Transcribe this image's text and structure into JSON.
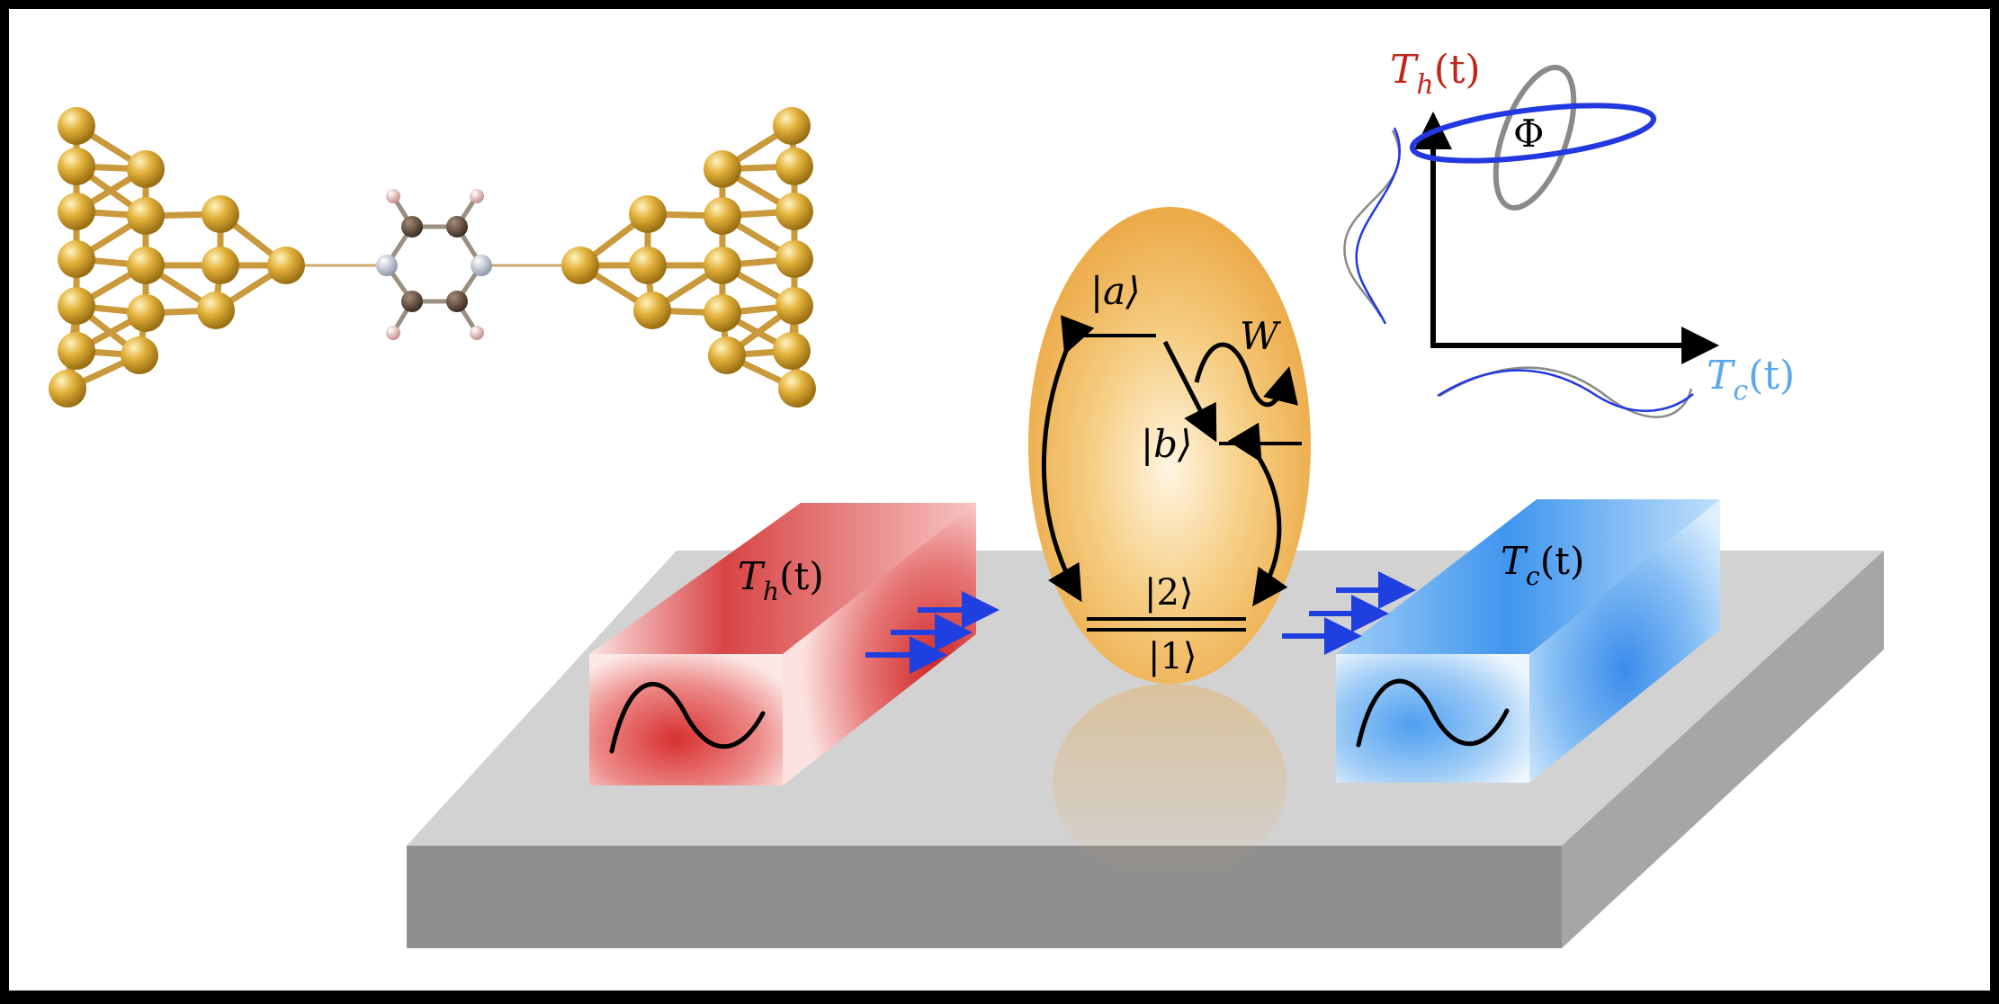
{
  "labels": {
    "hot_bath": {
      "symbol": "T",
      "sub": "h",
      "arg": "(t)"
    },
    "cold_bath": {
      "symbol": "T",
      "sub": "c",
      "arg": "(t)"
    },
    "plot_y_axis": {
      "symbol": "T",
      "sub": "h",
      "arg": "(t)"
    },
    "plot_x_axis": {
      "symbol": "T",
      "sub": "c",
      "arg": "(t)"
    },
    "flux": "Φ",
    "work": "W",
    "state_a": "|a⟩",
    "state_b": "|b⟩",
    "state_2": "|2⟩",
    "state_1": "|1⟩"
  },
  "colors": {
    "background": "#ffffff",
    "frame": "#000000",
    "hot": "#d42a2a",
    "hot_label": "#c0271b",
    "cold": "#3f95ee",
    "cold_label": "#5aa8ee",
    "molecule_gold": "#d4a22c",
    "bond_gold": "#c9993b",
    "carbon": "#5a4536",
    "nitrogen": "#aeb6c8",
    "hydrogen": "#d8a8a8",
    "arrows_blue": "#1f3fe0",
    "slab_top": "#d2d2d2",
    "slab_front": "#8f8f8f",
    "slab_side": "#a6a6a6",
    "egg": "#eea93c",
    "loop_blue": "#2238e0",
    "loop_gray": "#8a8a8a"
  },
  "icons": [
    "sine-wave-icon",
    "heat-flow-arrows-icon",
    "wavy-work-arrow-icon"
  ]
}
